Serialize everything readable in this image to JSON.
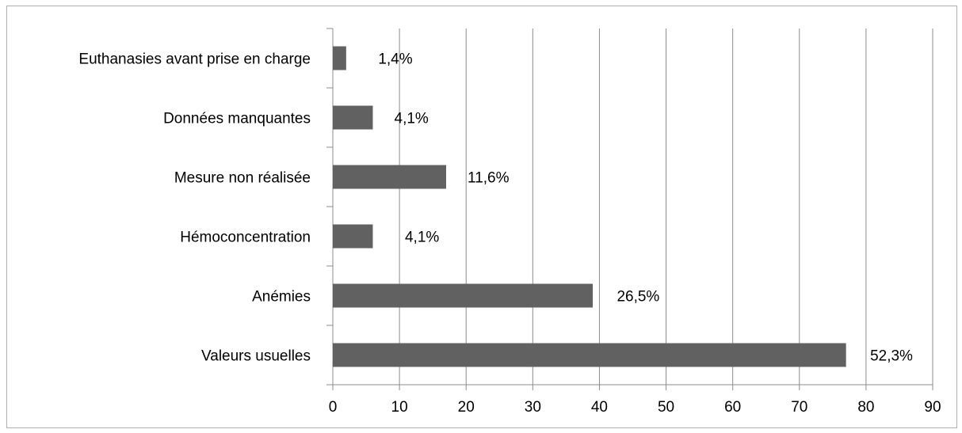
{
  "chart_data": {
    "type": "bar",
    "orientation": "horizontal",
    "categories": [
      "Euthanasies avant prise en charge",
      "Données manquantes",
      "Mesure non réalisée",
      "Hémoconcentration",
      "Anémies",
      "Valeurs usuelles"
    ],
    "values": [
      2,
      6,
      17,
      6,
      39,
      77
    ],
    "data_labels": [
      "1,4%",
      "4,1%",
      "11,6%",
      "4,1%",
      "26,5%",
      "52,3%"
    ],
    "xlim": [
      0,
      90
    ],
    "xticks": [
      0,
      10,
      20,
      30,
      40,
      50,
      60,
      70,
      80,
      90
    ],
    "title": "",
    "xlabel": "",
    "ylabel": "",
    "grid": "vertical",
    "legend": "none",
    "bar_color": "#616161",
    "grid_color": "#8c8c8c",
    "axis_color": "#8c8c8c"
  }
}
